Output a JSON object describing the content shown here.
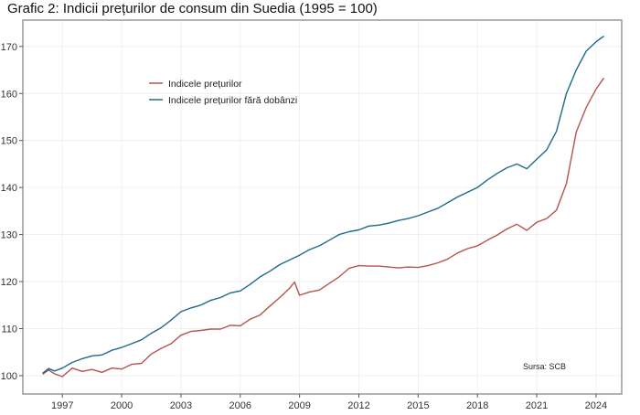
{
  "chart_data": {
    "type": "line",
    "title": "Grafic 2: Indicii prețurilor de consum din Suedia (1995 = 100)",
    "xlabel": "",
    "ylabel": "",
    "xlim": [
      1995.0,
      2025.3
    ],
    "ylim": [
      96.1,
      175.6
    ],
    "xticks": [
      1997,
      2000,
      2003,
      2006,
      2009,
      2012,
      2015,
      2018,
      2021,
      2024
    ],
    "yticks": [
      100,
      110,
      120,
      130,
      140,
      150,
      160,
      170
    ],
    "grid": true,
    "legend_position": "top-left",
    "annotation": "Sursa: SCB",
    "series": [
      {
        "name": "Indicele prețurilor",
        "color": "#b5534d",
        "x": [
          1996.0,
          1996.3,
          1996.6,
          1997.0,
          1997.5,
          1998.0,
          1998.5,
          1999.0,
          1999.5,
          2000.0,
          2000.5,
          2001.0,
          2001.5,
          2002.0,
          2002.5,
          2003.0,
          2003.5,
          2004.0,
          2004.5,
          2005.0,
          2005.5,
          2006.0,
          2006.5,
          2007.0,
          2007.5,
          2008.0,
          2008.5,
          2008.75,
          2009.0,
          2009.5,
          2010.0,
          2010.5,
          2011.0,
          2011.5,
          2012.0,
          2012.5,
          2013.0,
          2013.5,
          2014.0,
          2014.5,
          2015.0,
          2015.5,
          2016.0,
          2016.5,
          2017.0,
          2017.5,
          2018.0,
          2018.5,
          2019.0,
          2019.5,
          2020.0,
          2020.5,
          2021.0,
          2021.5,
          2022.0,
          2022.5,
          2023.0,
          2023.5,
          2024.0,
          2024.4
        ],
        "y": [
          100.3,
          101.2,
          100.4,
          99.8,
          101.6,
          100.9,
          101.3,
          100.7,
          101.6,
          101.4,
          102.4,
          102.6,
          104.6,
          105.8,
          106.8,
          108.6,
          109.4,
          109.6,
          109.9,
          109.9,
          110.7,
          110.6,
          112.0,
          112.9,
          114.8,
          116.6,
          118.6,
          119.9,
          117.1,
          117.8,
          118.2,
          119.6,
          121.0,
          122.8,
          123.4,
          123.3,
          123.3,
          123.1,
          122.9,
          123.1,
          123.0,
          123.4,
          124.0,
          124.8,
          126.1,
          127.0,
          127.6,
          128.8,
          129.9,
          131.2,
          132.2,
          130.9,
          132.6,
          133.4,
          135.2,
          140.8,
          151.8,
          157.0,
          160.9,
          163.3
        ]
      },
      {
        "name": "Indicele prețurilor fără dobânzi",
        "color": "#1f6a8a",
        "x": [
          1996.0,
          1996.3,
          1996.6,
          1997.0,
          1997.5,
          1998.0,
          1998.5,
          1999.0,
          1999.5,
          2000.0,
          2000.5,
          2001.0,
          2001.5,
          2002.0,
          2002.5,
          2003.0,
          2003.5,
          2004.0,
          2004.5,
          2005.0,
          2005.5,
          2006.0,
          2006.5,
          2007.0,
          2007.5,
          2008.0,
          2008.5,
          2009.0,
          2009.5,
          2010.0,
          2010.5,
          2011.0,
          2011.5,
          2012.0,
          2012.5,
          2013.0,
          2013.5,
          2014.0,
          2014.5,
          2015.0,
          2015.5,
          2016.0,
          2016.5,
          2017.0,
          2017.5,
          2018.0,
          2018.5,
          2019.0,
          2019.5,
          2020.0,
          2020.5,
          2021.0,
          2021.5,
          2022.0,
          2022.5,
          2023.0,
          2023.5,
          2024.0,
          2024.4
        ],
        "y": [
          100.5,
          101.5,
          101.0,
          101.6,
          102.8,
          103.6,
          104.2,
          104.4,
          105.4,
          106.0,
          106.8,
          107.6,
          109.0,
          110.2,
          111.8,
          113.6,
          114.4,
          115.0,
          116.0,
          116.6,
          117.6,
          118.0,
          119.4,
          121.0,
          122.2,
          123.6,
          124.6,
          125.6,
          126.8,
          127.6,
          128.8,
          130.0,
          130.6,
          131.0,
          131.8,
          132.0,
          132.4,
          133.0,
          133.4,
          134.0,
          134.8,
          135.6,
          136.8,
          138.0,
          139.0,
          140.0,
          141.6,
          143.0,
          144.2,
          145.0,
          144.0,
          146.0,
          148.0,
          152.0,
          160.0,
          165.0,
          169.0,
          171.0,
          172.2
        ]
      }
    ]
  }
}
